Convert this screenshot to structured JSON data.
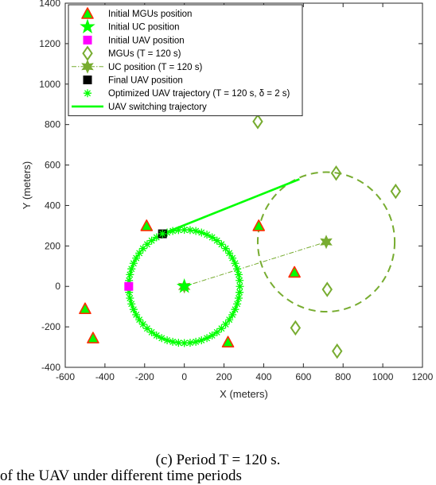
{
  "chart_data": {
    "type": "scatter",
    "xlabel": "X (meters)",
    "ylabel": "Y (meters)",
    "xlim": [
      -600,
      1200
    ],
    "ylim": [
      -400,
      1400
    ],
    "xticks": [
      -600,
      -400,
      -200,
      0,
      200,
      400,
      600,
      800,
      1000,
      1200
    ],
    "yticks": [
      -400,
      -200,
      0,
      200,
      400,
      600,
      800,
      1000,
      1200,
      1400
    ],
    "grid": false,
    "legend_position": "top-left",
    "colors": {
      "bright_green": "#00ff00",
      "dark_green": "#77ac30",
      "red": "#ff2a00",
      "magenta": "#ff00ff",
      "black": "#000000"
    },
    "legend": [
      {
        "label": "Initial MGUs position",
        "marker": "triangle"
      },
      {
        "label": "Initial UC position",
        "marker": "star"
      },
      {
        "label": "Initial UAV position",
        "marker": "square-magenta"
      },
      {
        "label": "MGUs (T = 120 s)",
        "marker": "diamond"
      },
      {
        "label": "UC position (T = 120 s)",
        "marker": "hexagram-line"
      },
      {
        "label": "Final UAV position",
        "marker": "square-black"
      },
      {
        "label": "Optimized UAV trajectory (T = 120 s, δ = 2 s)",
        "marker": "asterisk"
      },
      {
        "label": "UAV switching trajectory",
        "marker": "line"
      }
    ],
    "series": [
      {
        "name": "Initial MGUs position",
        "points": [
          [
            -500,
            -110
          ],
          [
            -460,
            -255
          ],
          [
            -190,
            300
          ],
          [
            220,
            -275
          ],
          [
            375,
            300
          ],
          [
            555,
            70
          ]
        ]
      },
      {
        "name": "Initial UC position",
        "points": [
          [
            0,
            0
          ]
        ]
      },
      {
        "name": "Initial UAV position",
        "points": [
          [
            -280,
            0
          ]
        ]
      },
      {
        "name": "MGUs (T = 120 s)",
        "points": [
          [
            370,
            815
          ],
          [
            765,
            560
          ],
          [
            1065,
            470
          ],
          [
            720,
            -15
          ],
          [
            560,
            -205
          ],
          [
            770,
            -320
          ]
        ]
      },
      {
        "name": "UC position (T = 120 s)",
        "points": [
          [
            0,
            0
          ],
          [
            715,
            220
          ]
        ]
      },
      {
        "name": "Final UAV position",
        "points": [
          [
            -110,
            260
          ]
        ]
      },
      {
        "name": "Optimized UAV trajectory (T = 120 s, δ = 2 s)",
        "circle": {
          "center": [
            0,
            0
          ],
          "radius": 280
        }
      },
      {
        "name": "UAV switching trajectory",
        "points": [
          [
            -110,
            260
          ],
          [
            580,
            530
          ]
        ]
      }
    ],
    "uc_coverage_circle": {
      "center": [
        715,
        220
      ],
      "radius": 345
    }
  },
  "caption": "(c) Period T = 120 s.",
  "bottom_text": "of the UAV under different time periods"
}
